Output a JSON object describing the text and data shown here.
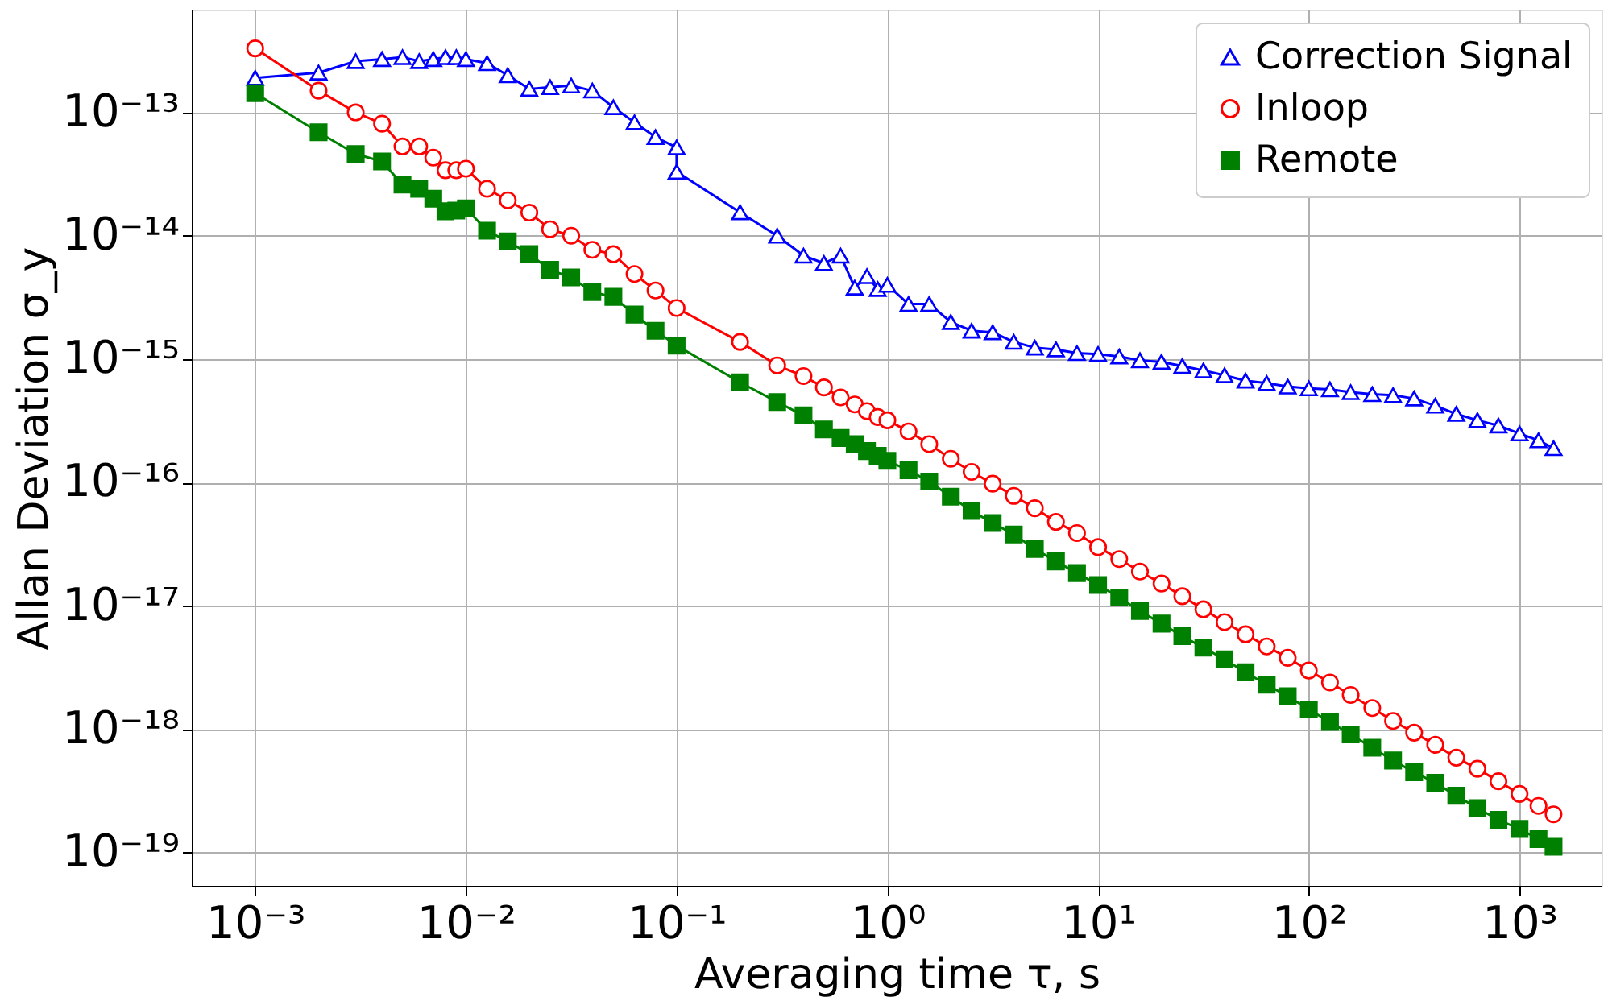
{
  "chart_data": {
    "type": "line",
    "xlabel": "Averaging time τ, s",
    "ylabel": "Allan Deviation σ_y",
    "log": "xy",
    "grid": true,
    "legend": "top right",
    "line_style": "solid",
    "xlim": [
      0.0005,
      2450
    ],
    "ylim": [
      5.4e-20,
      6.8e-13
    ],
    "xticks": [
      {
        "value": 0.001,
        "label": "10⁻³"
      },
      {
        "value": 0.01,
        "label": "10⁻²"
      },
      {
        "value": 0.1,
        "label": "10⁻¹"
      },
      {
        "value": 1,
        "label": "10⁰"
      },
      {
        "value": 10,
        "label": "10¹"
      },
      {
        "value": 100,
        "label": "10²"
      },
      {
        "value": 1000,
        "label": "10³"
      }
    ],
    "yticks": [
      {
        "value": 1e-19,
        "label": "10⁻¹⁹"
      },
      {
        "value": 1e-18,
        "label": "10⁻¹⁸"
      },
      {
        "value": 1e-17,
        "label": "10⁻¹⁷"
      },
      {
        "value": 1e-16,
        "label": "10⁻¹⁶"
      },
      {
        "value": 1e-15,
        "label": "10⁻¹⁵"
      },
      {
        "value": 1e-14,
        "label": "10⁻¹⁴"
      },
      {
        "value": 1e-13,
        "label": "10⁻¹³"
      }
    ],
    "x": [
      0.001,
      0.002,
      0.003,
      0.004,
      0.005,
      0.006,
      0.007,
      0.008,
      0.009,
      0.01,
      0.0126,
      0.0158,
      0.02,
      0.0251,
      0.0316,
      0.0398,
      0.0501,
      0.0631,
      0.0794,
      0.1,
      0.2,
      0.3,
      0.4,
      0.5,
      0.6,
      0.7,
      0.8,
      0.9,
      1,
      1.26,
      1.58,
      2,
      2.51,
      3.16,
      3.98,
      5.01,
      6.31,
      7.94,
      10,
      12.6,
      15.8,
      20,
      25.1,
      31.6,
      39.8,
      50.1,
      63.1,
      79.4,
      100,
      126,
      158,
      200,
      251,
      316,
      398,
      501,
      631,
      794,
      1000,
      1230,
      1450
    ],
    "series": [
      {
        "name": "Correction Signal",
        "color": "#0000ff",
        "marker": "triangle",
        "x": [
          0.001,
          0.002,
          0.003,
          0.004,
          0.005,
          0.006,
          0.007,
          0.008,
          0.009,
          0.01,
          0.0126,
          0.0158,
          0.02,
          0.0251,
          0.0316,
          0.0398,
          0.0501,
          0.0631,
          0.0794,
          0.1,
          0.1,
          0.2,
          0.3,
          0.4,
          0.5,
          0.6,
          0.7,
          0.8,
          0.9,
          1,
          1.26,
          1.58,
          2,
          2.51,
          3.16,
          3.98,
          5.01,
          6.31,
          7.94,
          10,
          12.6,
          15.8,
          20,
          25.1,
          31.6,
          39.8,
          50.1,
          63.1,
          79.4,
          100,
          126,
          158,
          200,
          251,
          316,
          398,
          501,
          631,
          794,
          1000,
          1230,
          1450
        ],
        "values": [
          1.9e-13,
          2.1e-13,
          2.6e-13,
          2.7e-13,
          2.8e-13,
          2.6e-13,
          2.7e-13,
          2.8e-13,
          2.8e-13,
          2.7e-13,
          2.5e-13,
          2e-13,
          1.55e-13,
          1.6e-13,
          1.65e-13,
          1.5e-13,
          1.1e-13,
          8.3e-14,
          6.3e-14,
          5.2e-14,
          3.3e-14,
          1.55e-14,
          1e-14,
          6.9e-15,
          6e-15,
          6.9e-15,
          3.8e-15,
          4.7e-15,
          3.7e-15,
          4e-15,
          2.8e-15,
          2.8e-15,
          2e-15,
          1.7e-15,
          1.65e-15,
          1.38e-15,
          1.24e-15,
          1.2e-15,
          1.12e-15,
          1.1e-15,
          1.05e-15,
          9.8e-16,
          9.5e-16,
          8.8e-16,
          8.1e-16,
          7.4e-16,
          6.7e-16,
          6.4e-16,
          6e-16,
          5.8e-16,
          5.7e-16,
          5.4e-16,
          5.2e-16,
          5.1e-16,
          4.8e-16,
          4.2e-16,
          3.6e-16,
          3.2e-16,
          2.9e-16,
          2.5e-16,
          2.2e-16,
          1.9e-16
        ]
      },
      {
        "name": "Inloop",
        "color": "#ff0000",
        "marker": "circle",
        "values": [
          3.3e-13,
          1.5e-13,
          1e-13,
          8.1e-14,
          5.3e-14,
          5.3e-14,
          4.3e-14,
          3.4e-14,
          3.4e-14,
          3.5e-14,
          2.4e-14,
          1.94e-14,
          1.54e-14,
          1.13e-14,
          1e-14,
          7.7e-15,
          7.1e-15,
          4.9e-15,
          3.6e-15,
          2.6e-15,
          1.38e-15,
          8.9e-16,
          7.3e-16,
          5.9e-16,
          4.9e-16,
          4.3e-16,
          3.8e-16,
          3.4e-16,
          3.2e-16,
          2.6e-16,
          2.05e-16,
          1.56e-16,
          1.22e-16,
          9.8e-17,
          7.8e-17,
          6.2e-17,
          4.8e-17,
          3.9e-17,
          3e-17,
          2.4e-17,
          1.9e-17,
          1.52e-17,
          1.2e-17,
          9.4e-18,
          7.4e-18,
          5.9e-18,
          4.7e-18,
          3.8e-18,
          3e-18,
          2.4e-18,
          1.9e-18,
          1.49e-18,
          1.17e-18,
          9.4e-19,
          7.5e-19,
          5.9e-19,
          4.8e-19,
          3.8e-19,
          3e-19,
          2.4e-19,
          2.05e-19
        ]
      },
      {
        "name": "Remote",
        "color": "#008000",
        "marker": "square",
        "values": [
          1.43e-13,
          6.9e-14,
          4.6e-14,
          4e-14,
          2.6e-14,
          2.4e-14,
          2e-14,
          1.58e-14,
          1.6e-14,
          1.67e-14,
          1.1e-14,
          9e-15,
          7.1e-15,
          5.3e-15,
          4.6e-15,
          3.5e-15,
          3.2e-15,
          2.3e-15,
          1.7e-15,
          1.29e-15,
          6.5e-16,
          4.5e-16,
          3.5e-16,
          2.7e-16,
          2.3e-16,
          2.05e-16,
          1.8e-16,
          1.65e-16,
          1.5e-16,
          1.26e-16,
          1.02e-16,
          7.7e-17,
          5.9e-17,
          4.7e-17,
          3.8e-17,
          2.9e-17,
          2.3e-17,
          1.85e-17,
          1.48e-17,
          1.17e-17,
          9.1e-18,
          7.2e-18,
          5.7e-18,
          4.6e-18,
          3.7e-18,
          2.9e-18,
          2.3e-18,
          1.86e-18,
          1.45e-18,
          1.15e-18,
          9.1e-19,
          7.1e-19,
          5.6e-19,
          4.5e-19,
          3.7e-19,
          2.9e-19,
          2.3e-19,
          1.85e-19,
          1.56e-19,
          1.29e-19,
          1.12e-19
        ]
      }
    ]
  }
}
